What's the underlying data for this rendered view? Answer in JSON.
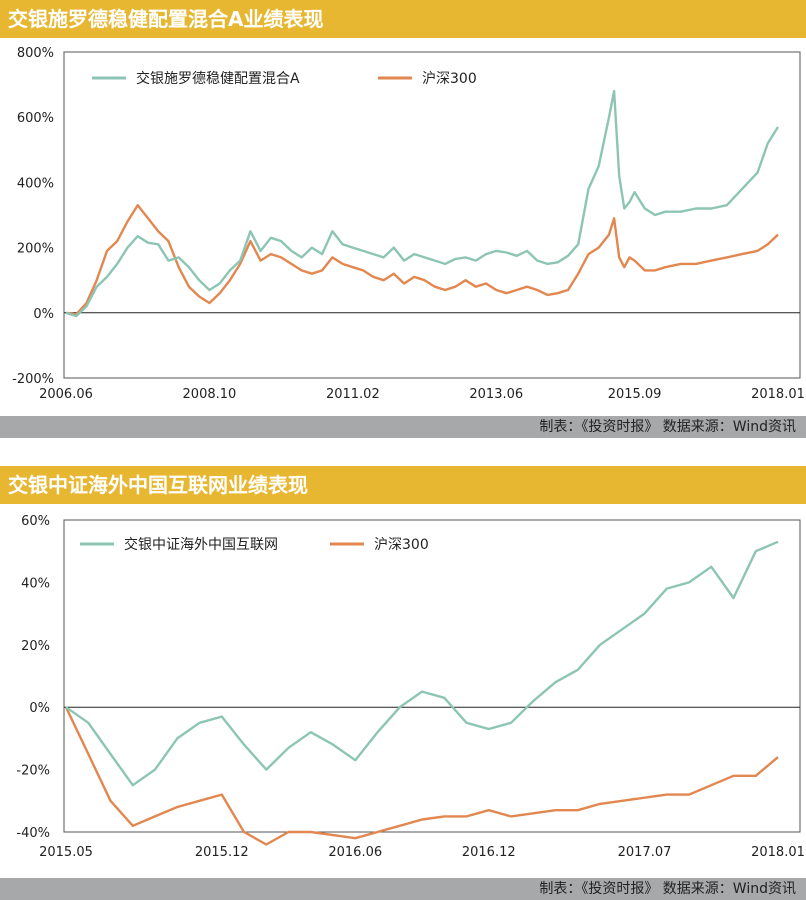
{
  "chart_data": [
    {
      "type": "line",
      "title": "交银施罗德稳健配置混合A业绩表现",
      "source": "制表：《投资时报》 数据来源：Wind资讯",
      "x_ticks": [
        "2006.06",
        "2008.10",
        "2011.02",
        "2013.06",
        "2015.09",
        "2018.01"
      ],
      "y_ticks": [
        "800%",
        "600%",
        "400%",
        "200%",
        "0%",
        "-200%"
      ],
      "ylim": [
        -200,
        800
      ],
      "y_unit": "%",
      "legend_position": "top-left",
      "colors": {
        "fund": "#8dc5b5",
        "index": "#e2874f"
      },
      "series": [
        {
          "name": "交银施罗德稳健配置混合A",
          "x": [
            "2006.06",
            "2006.08",
            "2006.10",
            "2006.12",
            "2007.02",
            "2007.04",
            "2007.06",
            "2007.08",
            "2007.10",
            "2007.12",
            "2008.02",
            "2008.04",
            "2008.06",
            "2008.08",
            "2008.10",
            "2008.12",
            "2009.02",
            "2009.04",
            "2009.06",
            "2009.08",
            "2009.10",
            "2009.12",
            "2010.02",
            "2010.04",
            "2010.06",
            "2010.08",
            "2010.10",
            "2010.12",
            "2011.02",
            "2011.04",
            "2011.06",
            "2011.08",
            "2011.10",
            "2011.12",
            "2012.02",
            "2012.04",
            "2012.06",
            "2012.08",
            "2012.10",
            "2012.12",
            "2013.02",
            "2013.04",
            "2013.06",
            "2013.08",
            "2013.10",
            "2013.12",
            "2014.02",
            "2014.04",
            "2014.06",
            "2014.08",
            "2014.10",
            "2014.12",
            "2015.02",
            "2015.04",
            "2015.05",
            "2015.06",
            "2015.07",
            "2015.08",
            "2015.09",
            "2015.11",
            "2016.01",
            "2016.03",
            "2016.06",
            "2016.09",
            "2016.12",
            "2017.03",
            "2017.06",
            "2017.09",
            "2017.11",
            "2018.01"
          ],
          "values": [
            0,
            -10,
            20,
            80,
            110,
            150,
            200,
            235,
            215,
            210,
            160,
            170,
            140,
            100,
            70,
            90,
            130,
            160,
            250,
            190,
            230,
            220,
            190,
            170,
            200,
            180,
            250,
            210,
            200,
            190,
            180,
            170,
            200,
            160,
            180,
            170,
            160,
            150,
            165,
            170,
            160,
            180,
            190,
            185,
            175,
            190,
            160,
            150,
            155,
            175,
            210,
            380,
            450,
            600,
            680,
            420,
            320,
            340,
            370,
            320,
            300,
            310,
            310,
            320,
            320,
            330,
            380,
            430,
            520,
            570
          ]
        },
        {
          "name": "沪深300",
          "x": [
            "2006.06",
            "2006.08",
            "2006.10",
            "2006.12",
            "2007.02",
            "2007.04",
            "2007.06",
            "2007.08",
            "2007.10",
            "2007.12",
            "2008.02",
            "2008.04",
            "2008.06",
            "2008.08",
            "2008.10",
            "2008.12",
            "2009.02",
            "2009.04",
            "2009.06",
            "2009.08",
            "2009.10",
            "2009.12",
            "2010.02",
            "2010.04",
            "2010.06",
            "2010.08",
            "2010.10",
            "2010.12",
            "2011.02",
            "2011.04",
            "2011.06",
            "2011.08",
            "2011.10",
            "2011.12",
            "2012.02",
            "2012.04",
            "2012.06",
            "2012.08",
            "2012.10",
            "2012.12",
            "2013.02",
            "2013.04",
            "2013.06",
            "2013.08",
            "2013.10",
            "2013.12",
            "2014.02",
            "2014.04",
            "2014.06",
            "2014.08",
            "2014.10",
            "2014.12",
            "2015.02",
            "2015.04",
            "2015.05",
            "2015.06",
            "2015.07",
            "2015.08",
            "2015.09",
            "2015.11",
            "2016.01",
            "2016.03",
            "2016.06",
            "2016.09",
            "2016.12",
            "2017.03",
            "2017.06",
            "2017.09",
            "2017.11",
            "2018.01"
          ],
          "values": [
            0,
            -5,
            30,
            100,
            190,
            220,
            280,
            330,
            290,
            250,
            220,
            140,
            80,
            50,
            30,
            60,
            100,
            150,
            220,
            160,
            180,
            170,
            150,
            130,
            120,
            130,
            170,
            150,
            140,
            130,
            110,
            100,
            120,
            90,
            110,
            100,
            80,
            70,
            80,
            100,
            80,
            90,
            70,
            60,
            70,
            80,
            70,
            55,
            60,
            70,
            120,
            180,
            200,
            240,
            290,
            170,
            140,
            170,
            160,
            130,
            130,
            140,
            150,
            150,
            160,
            170,
            180,
            190,
            210,
            240
          ]
        }
      ]
    },
    {
      "type": "line",
      "title": "交银中证海外中国互联网业绩表现",
      "source": "制表：《投资时报》 数据来源：Wind资讯",
      "x_ticks": [
        "2015.05",
        "2015.12",
        "2016.06",
        "2016.12",
        "2017.07",
        "2018.01"
      ],
      "y_ticks": [
        "60%",
        "40%",
        "20%",
        "0%",
        "-20%",
        "-40%"
      ],
      "ylim": [
        -40,
        60
      ],
      "y_unit": "%",
      "legend_position": "top-left",
      "colors": {
        "fund": "#8dc5b5",
        "index": "#e2874f"
      },
      "series": [
        {
          "name": "交银中证海外中国互联网",
          "x": [
            "2015.05",
            "2015.06",
            "2015.07",
            "2015.08",
            "2015.09",
            "2015.10",
            "2015.11",
            "2015.12",
            "2016.01",
            "2016.02",
            "2016.03",
            "2016.04",
            "2016.05",
            "2016.06",
            "2016.07",
            "2016.08",
            "2016.09",
            "2016.10",
            "2016.11",
            "2016.12",
            "2017.01",
            "2017.02",
            "2017.03",
            "2017.04",
            "2017.05",
            "2017.06",
            "2017.07",
            "2017.08",
            "2017.09",
            "2017.10",
            "2017.11",
            "2017.12",
            "2018.01"
          ],
          "values": [
            0,
            -5,
            -15,
            -25,
            -20,
            -10,
            -5,
            -3,
            -12,
            -20,
            -13,
            -8,
            -12,
            -17,
            -8,
            0,
            5,
            3,
            -5,
            -7,
            -5,
            2,
            8,
            12,
            20,
            25,
            30,
            38,
            40,
            45,
            35,
            50,
            53
          ]
        },
        {
          "name": "沪深300",
          "x": [
            "2015.05",
            "2015.06",
            "2015.07",
            "2015.08",
            "2015.09",
            "2015.10",
            "2015.11",
            "2015.12",
            "2016.01",
            "2016.02",
            "2016.03",
            "2016.04",
            "2016.05",
            "2016.06",
            "2016.07",
            "2016.08",
            "2016.09",
            "2016.10",
            "2016.11",
            "2016.12",
            "2017.01",
            "2017.02",
            "2017.03",
            "2017.04",
            "2017.05",
            "2017.06",
            "2017.07",
            "2017.08",
            "2017.09",
            "2017.10",
            "2017.11",
            "2017.12",
            "2018.01"
          ],
          "values": [
            0,
            -15,
            -30,
            -38,
            -35,
            -32,
            -30,
            -28,
            -40,
            -44,
            -40,
            -40,
            -41,
            -42,
            -40,
            -38,
            -36,
            -35,
            -35,
            -33,
            -35,
            -34,
            -33,
            -33,
            -31,
            -30,
            -29,
            -28,
            -28,
            -25,
            -22,
            -22,
            -16
          ]
        }
      ]
    }
  ]
}
